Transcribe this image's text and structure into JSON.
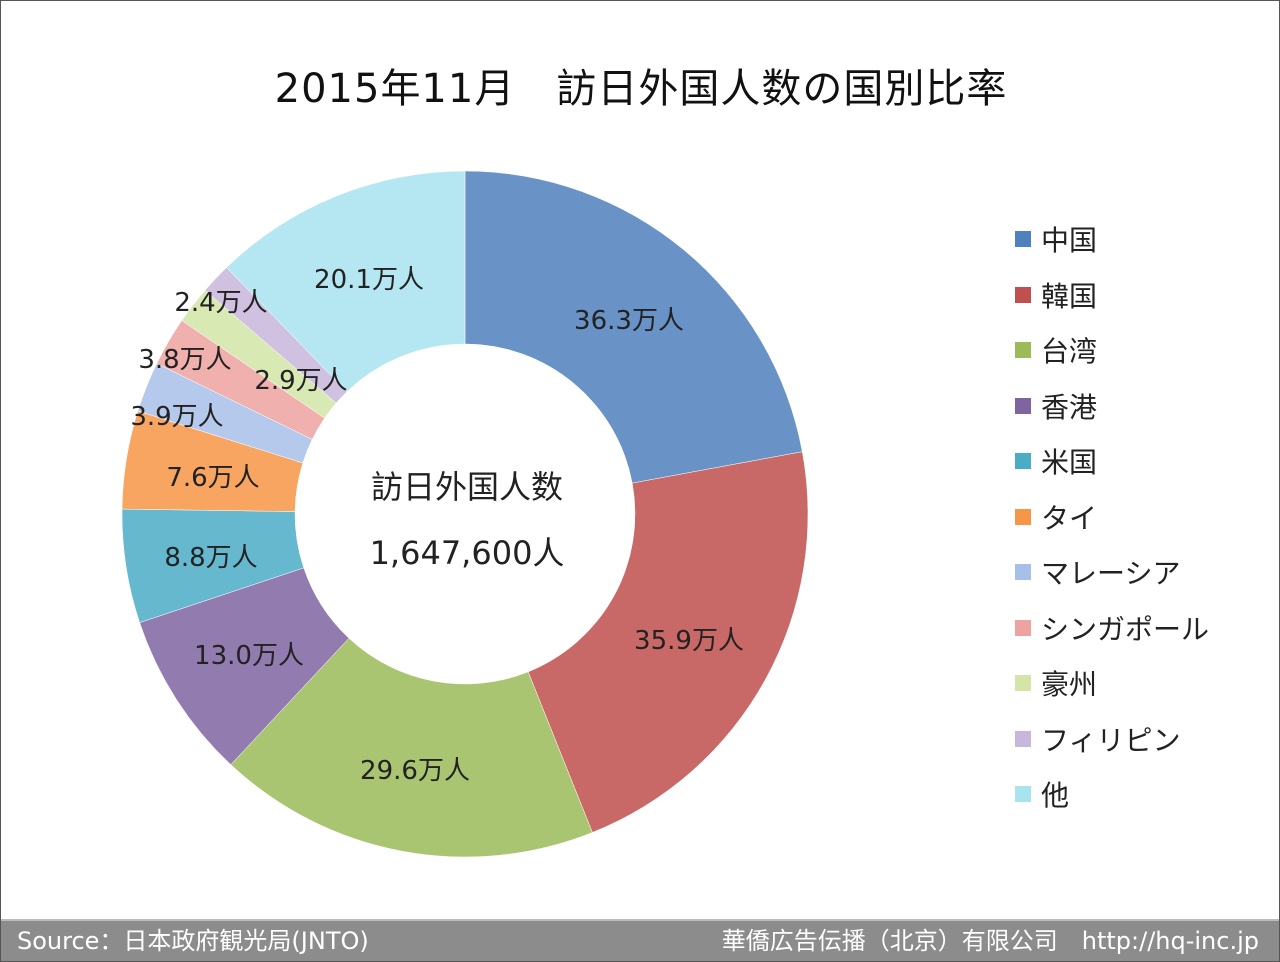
{
  "chart_data": {
    "type": "pie",
    "donut": true,
    "title": "2015年11月　訪日外国人数の国別比率",
    "center_label": "訪日外国人数",
    "center_value": "1,647,600人",
    "unit": "万人",
    "categories": [
      "中国",
      "韓国",
      "台湾",
      "香港",
      "米国",
      "タイ",
      "マレーシア",
      "シンガポール",
      "豪州",
      "フィリピン",
      "他"
    ],
    "values": [
      36.3,
      35.9,
      29.6,
      13.0,
      8.8,
      7.6,
      3.9,
      3.8,
      2.9,
      2.4,
      20.1
    ],
    "data_labels": [
      "36.3万人",
      "35.9万人",
      "29.6万人",
      "13.0万人",
      "8.8万人",
      "7.6万人",
      "3.9万人",
      "3.8万人",
      "2.9万人",
      "2.4万人",
      "20.1万人"
    ],
    "colors": [
      "#4f81bd",
      "#c0504d",
      "#9bbb59",
      "#8064a2",
      "#4bacc6",
      "#f79646",
      "#a7c0e8",
      "#eea3a1",
      "#d3e6a7",
      "#c8b7dc",
      "#a9e3f0"
    ],
    "legend_position": "right"
  },
  "footer": {
    "source": "Source：日本政府観光局(JNTO)",
    "company": "華僑広告伝播（北京）有限公司　http://hq-inc.jp"
  }
}
